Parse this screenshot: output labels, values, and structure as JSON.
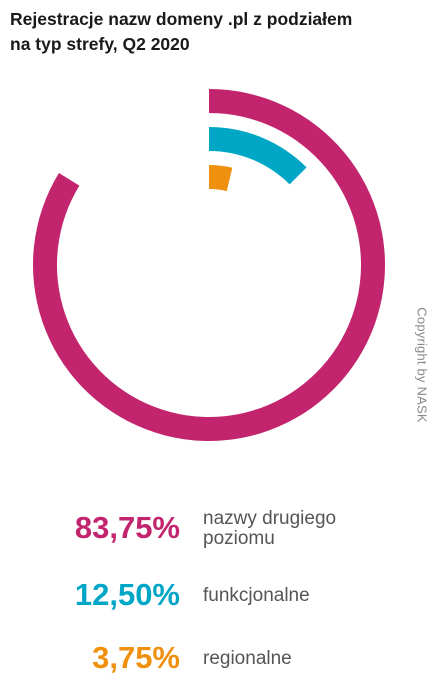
{
  "title": {
    "line1": "Rejestracje nazw domeny .pl z podziałem",
    "line2": "na typ strefy, Q2 2020"
  },
  "copyright": "Copyright by NASK",
  "legend": [
    {
      "value": "83,75%",
      "label_line1": "nazwy drugiego",
      "label_line2": "poziomu",
      "color": "#C2256E"
    },
    {
      "value": "12,50%",
      "label_line1": "funkcjonalne",
      "label_line2": "",
      "color": "#00A6C5"
    },
    {
      "value": "3,75%",
      "label_line1": "regionalne",
      "label_line2": "",
      "color": "#F0900F"
    }
  ],
  "chart_data": {
    "type": "radial bar (concentric arcs)",
    "title": "Rejestracje nazw domeny .pl z podziałem na typ strefy, Q2 2020",
    "unit": "%",
    "max": 100,
    "series": [
      {
        "name": "nazwy drugiego poziomu",
        "value": 83.75,
        "color": "#C2256E"
      },
      {
        "name": "funkcjonalne",
        "value": 12.5,
        "color": "#00A6C5"
      },
      {
        "name": "regionalne",
        "value": 3.75,
        "color": "#F0900F"
      }
    ]
  }
}
